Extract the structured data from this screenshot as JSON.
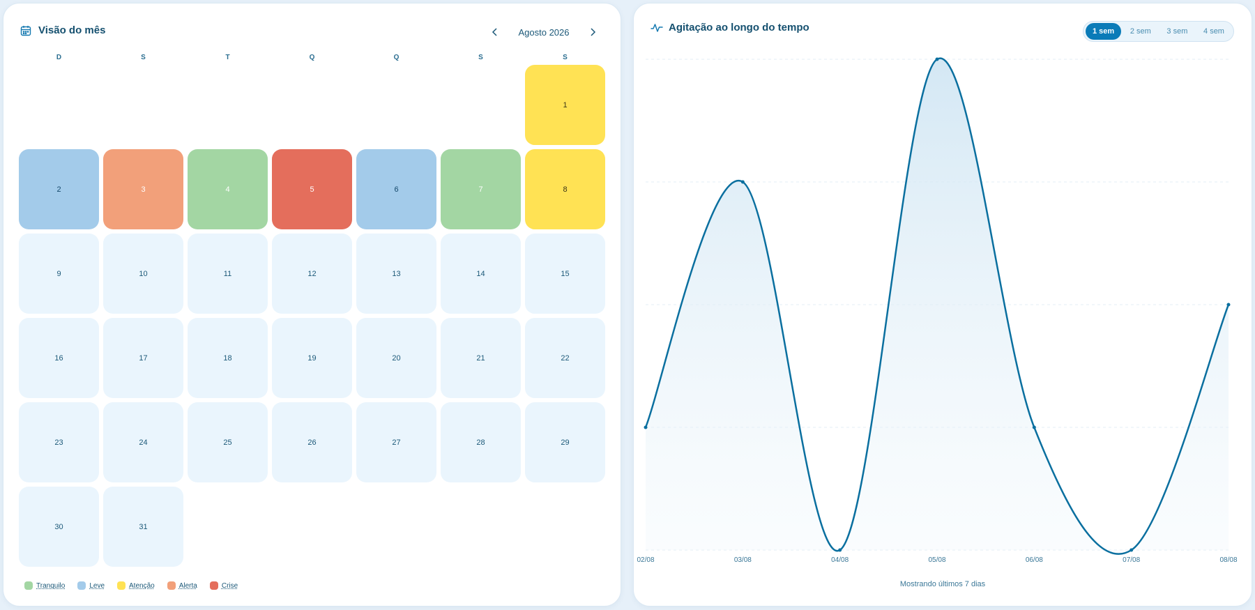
{
  "calendar": {
    "title": "Visão do mês",
    "month_label": "Agosto 2026",
    "weekdays": [
      "D",
      "S",
      "T",
      "Q",
      "Q",
      "S",
      "S"
    ],
    "start_offset": 6,
    "days": [
      {
        "day": "1",
        "level": "atencao"
      },
      {
        "day": "2",
        "level": "leve"
      },
      {
        "day": "3",
        "level": "alerta"
      },
      {
        "day": "4",
        "level": "tranquilo"
      },
      {
        "day": "5",
        "level": "crise"
      },
      {
        "day": "6",
        "level": "leve"
      },
      {
        "day": "7",
        "level": "tranquilo"
      },
      {
        "day": "8",
        "level": "atencao"
      },
      {
        "day": "9",
        "level": ""
      },
      {
        "day": "10",
        "level": ""
      },
      {
        "day": "11",
        "level": ""
      },
      {
        "day": "12",
        "level": ""
      },
      {
        "day": "13",
        "level": ""
      },
      {
        "day": "14",
        "level": ""
      },
      {
        "day": "15",
        "level": ""
      },
      {
        "day": "16",
        "level": ""
      },
      {
        "day": "17",
        "level": ""
      },
      {
        "day": "18",
        "level": ""
      },
      {
        "day": "19",
        "level": ""
      },
      {
        "day": "20",
        "level": ""
      },
      {
        "day": "21",
        "level": ""
      },
      {
        "day": "22",
        "level": ""
      },
      {
        "day": "23",
        "level": ""
      },
      {
        "day": "24",
        "level": ""
      },
      {
        "day": "25",
        "level": ""
      },
      {
        "day": "26",
        "level": ""
      },
      {
        "day": "27",
        "level": ""
      },
      {
        "day": "28",
        "level": ""
      },
      {
        "day": "29",
        "level": ""
      },
      {
        "day": "30",
        "level": ""
      },
      {
        "day": "31",
        "level": ""
      }
    ],
    "legend": [
      {
        "label": "Tranquilo",
        "color": "#a3d6a3"
      },
      {
        "label": "Leve",
        "color": "#a3cbea"
      },
      {
        "label": "Atenção",
        "color": "#ffe254"
      },
      {
        "label": "Alerta",
        "color": "#f2a07a"
      },
      {
        "label": "Crise",
        "color": "#e46e5c"
      }
    ]
  },
  "trend": {
    "title": "Agitação ao longo do tempo",
    "ranges": [
      {
        "label": "1 sem",
        "active": true
      },
      {
        "label": "2 sem",
        "active": false
      },
      {
        "label": "3 sem",
        "active": false
      },
      {
        "label": "4 sem",
        "active": false
      }
    ],
    "footer": "Mostrando últimos 7 dias"
  },
  "chart_data": {
    "type": "area",
    "x": [
      "02/08",
      "03/08",
      "04/08",
      "05/08",
      "06/08",
      "07/08",
      "08/08"
    ],
    "series": [
      {
        "values": [
          1,
          3,
          0,
          4,
          1,
          0,
          2
        ]
      }
    ],
    "ylim": [
      0,
      4
    ],
    "grid": true,
    "line_color": "#0a6f9f"
  }
}
